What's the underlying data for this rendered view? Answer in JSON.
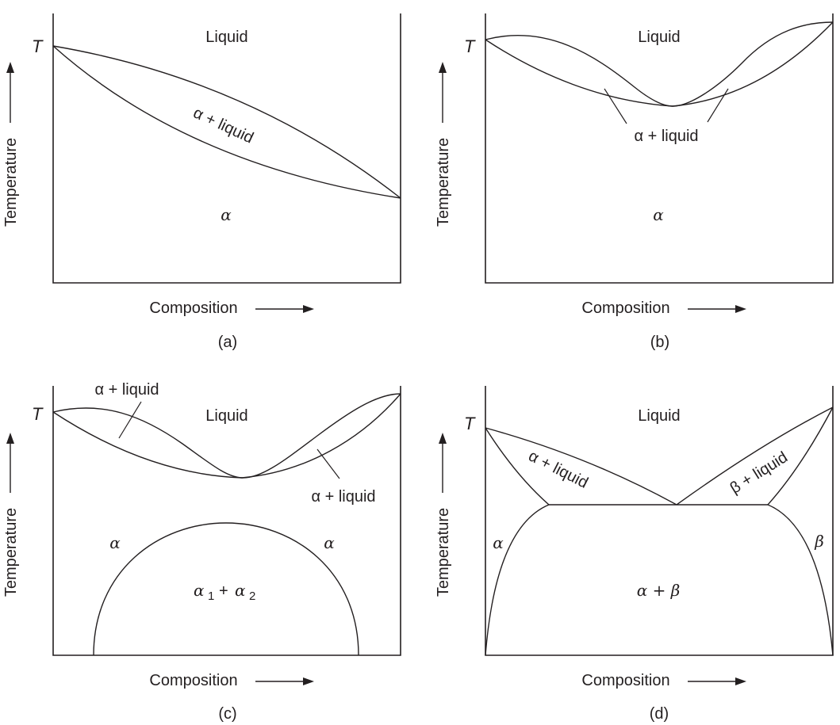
{
  "common": {
    "t_symbol": "T",
    "y_axis_label": "Temperature",
    "x_axis_label": "Composition"
  },
  "panels": {
    "a": {
      "caption": "(a)",
      "region_liquid": "Liquid",
      "region_alpha_liquid": "α + liquid",
      "region_alpha": "α"
    },
    "b": {
      "caption": "(b)",
      "region_liquid": "Liquid",
      "region_alpha_liquid": "α + liquid",
      "region_alpha": "α"
    },
    "c": {
      "caption": "(c)",
      "region_liquid": "Liquid",
      "region_alpha_liquid_left": "α + liquid",
      "region_alpha_liquid_right": "α + liquid",
      "region_alpha_left": "α",
      "region_alpha_right": "α",
      "region_alpha1_alpha2": {
        "alpha": "α",
        "sub1": "1",
        "plus": "+",
        "sub2": "2"
      }
    },
    "d": {
      "caption": "(d)",
      "region_liquid": "Liquid",
      "region_alpha_liquid": "α + liquid",
      "region_beta_liquid": "β + liquid",
      "region_alpha": "α",
      "region_beta": "β",
      "region_alpha_beta": "α + β"
    }
  }
}
